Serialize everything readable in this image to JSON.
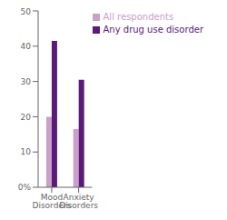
{
  "chart_data": {
    "type": "bar",
    "categories": [
      "Mood Disorders",
      "Anxiety Disorders"
    ],
    "series": [
      {
        "name": "All respondents",
        "color": "#c9a0c8",
        "values": [
          20,
          16.5
        ]
      },
      {
        "name": "Any drug use disorder",
        "color": "#5b1a7a",
        "values": [
          41.5,
          30.5
        ]
      }
    ],
    "ylim": [
      0,
      50
    ],
    "yticks": [
      {
        "value": 0,
        "label": "0%"
      },
      10,
      20,
      30,
      40,
      50
    ],
    "grid": false,
    "legend": "upper right"
  }
}
